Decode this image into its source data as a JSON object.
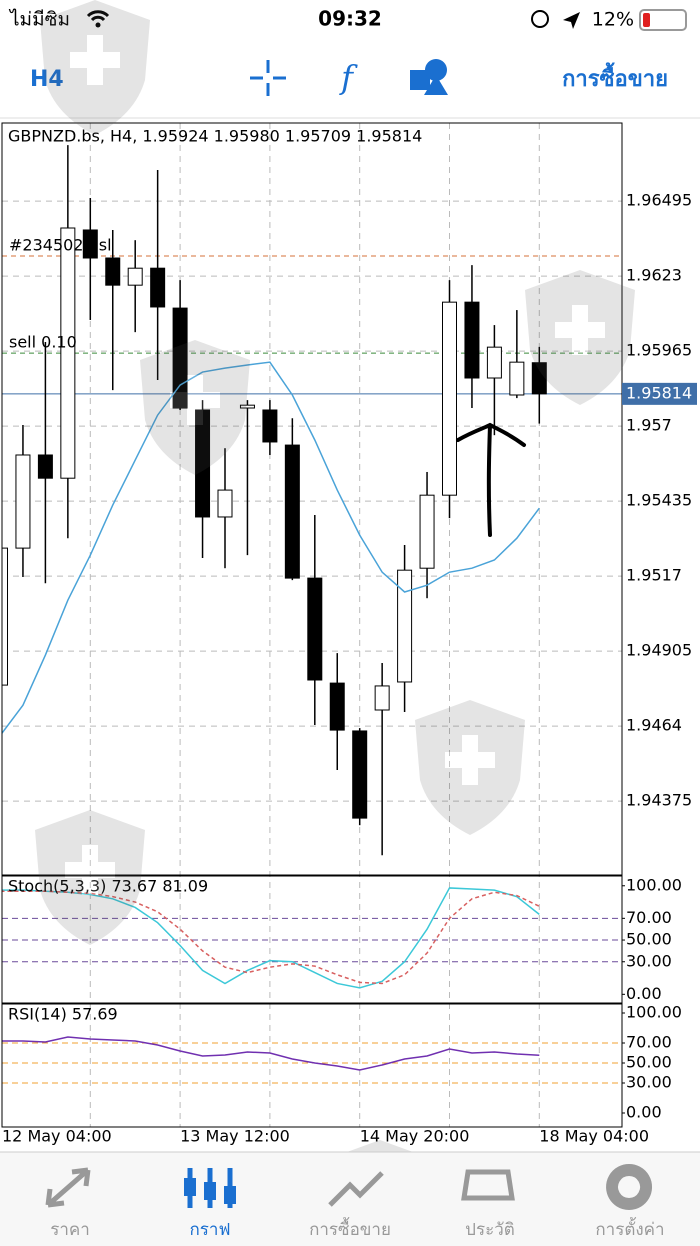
{
  "status_bar": {
    "carrier": "ไม่มีซิม",
    "time": "09:32",
    "battery": "12%"
  },
  "toolbar": {
    "timeframe": "H4",
    "trade": "การซื้อขาย"
  },
  "chart_data": [
    {
      "type": "candlestick",
      "title": "GBPNZD.bs, H4, 1.95924 1.95980 1.95709 1.95814",
      "open": [
        1.94785,
        1.95269,
        1.95598,
        1.95516,
        1.96393,
        1.96294,
        1.96198,
        1.96258,
        1.96117,
        1.95757,
        1.95379,
        1.95764,
        1.95757,
        1.95633,
        1.95163,
        1.94792,
        1.94623,
        1.94697,
        1.94796,
        1.95198,
        1.95456,
        1.96138,
        1.9587,
        1.9581,
        1.95924
      ],
      "high": [
        1.95269,
        1.95704,
        1.95997,
        1.96693,
        1.96506,
        1.96393,
        1.96357,
        1.96605,
        1.96216,
        1.95792,
        1.95622,
        1.95792,
        1.95792,
        1.95728,
        1.95386,
        1.94898,
        1.94633,
        1.94863,
        1.9528,
        1.95538,
        1.96216,
        1.96269,
        1.96057,
        1.9611,
        1.9598
      ],
      "low": [
        1.94785,
        1.95167,
        1.95145,
        1.95304,
        1.96075,
        1.95827,
        1.96032,
        1.95863,
        1.95757,
        1.95234,
        1.95198,
        1.95244,
        1.95598,
        1.95156,
        1.94644,
        1.94485,
        1.9429,
        1.94184,
        1.9469,
        1.95092,
        1.95375,
        1.95764,
        1.95668,
        1.95799,
        1.95709
      ],
      "close": [
        1.95269,
        1.95598,
        1.95516,
        1.964,
        1.96294,
        1.96198,
        1.96258,
        1.96121,
        1.95764,
        1.95379,
        1.95474,
        1.95774,
        1.95644,
        1.95163,
        1.94803,
        1.94626,
        1.94315,
        1.94782,
        1.95191,
        1.95456,
        1.96138,
        1.9587,
        1.95979,
        1.95926,
        1.95814
      ],
      "up_color": "#ffffff",
      "down_color": "#000000",
      "ma": {
        "color": "#4aa3d8",
        "values": [
          1.94608,
          1.94714,
          1.94891,
          1.95085,
          1.95244,
          1.95421,
          1.9558,
          1.95739,
          1.95845,
          1.95891,
          1.95905,
          1.95916,
          1.95926,
          1.9581,
          1.95651,
          1.95474,
          1.95315,
          1.95184,
          1.95114,
          1.95138,
          1.95184,
          1.95198,
          1.95227,
          1.95304,
          1.9541
        ]
      },
      "levels": [
        {
          "label": "#2345025 sl",
          "value": 1.96301,
          "color": "#d4703a"
        },
        {
          "label": "sell 0.10",
          "value": 1.95958,
          "color": "#3a8a3a"
        }
      ],
      "last_price": 1.95814,
      "last_price_color": "#3f6fa8",
      "ylim": [
        1.94114,
        1.96771
      ],
      "yticks": [
        1.96495,
        1.9623,
        1.95965,
        1.957,
        1.95435,
        1.9517,
        1.94905,
        1.9464,
        1.94375
      ],
      "grid": true
    },
    {
      "type": "line",
      "title": "Stoch(5,3,3) 73.67 81.09",
      "series": [
        {
          "color": "#3cc8d8",
          "values": [
            96,
            96,
            95,
            94,
            92,
            88,
            80,
            66,
            45,
            22,
            10,
            22,
            31,
            30,
            20,
            10,
            6,
            12,
            30,
            60,
            98,
            97,
            96,
            90,
            73.67
          ]
        },
        {
          "color": "#d86060",
          "dashed": true,
          "values": [
            95,
            95,
            95,
            94,
            93,
            90,
            85,
            76,
            60,
            40,
            25,
            20,
            25,
            28,
            26,
            18,
            11,
            10,
            18,
            38,
            70,
            88,
            94,
            91,
            81.09
          ]
        }
      ],
      "levels": [
        70,
        50,
        30
      ],
      "level_color": "#6a4a9a",
      "ylim": [
        -8,
        109
      ],
      "yticks": [
        {
          "value": 100,
          "label": "100.00"
        },
        {
          "value": 70,
          "label": "70.00"
        },
        {
          "value": 50,
          "label": "50.00"
        },
        {
          "value": 30,
          "label": "30.00"
        },
        {
          "value": 0,
          "label": "0.00"
        }
      ]
    },
    {
      "type": "line",
      "title": "RSI(14) 57.69",
      "series": [
        {
          "color": "#7030b0",
          "values": [
            72,
            72,
            71,
            76,
            74,
            73,
            72,
            68,
            62,
            57,
            58,
            61,
            60,
            54,
            50,
            47,
            43,
            48,
            54,
            57,
            64,
            60,
            61,
            59,
            57.69
          ]
        }
      ],
      "levels": [
        70,
        50,
        30
      ],
      "level_color": "#f0a030",
      "ylim": [
        -14,
        109
      ],
      "yticks": [
        {
          "value": 100,
          "label": "100.00"
        },
        {
          "value": 70,
          "label": "70.00"
        },
        {
          "value": 50,
          "label": "50.00"
        },
        {
          "value": 30,
          "label": "30.00"
        },
        {
          "value": 0,
          "label": "0.00"
        }
      ],
      "categories": [
        "12 May 04:00",
        null,
        null,
        null,
        null,
        null,
        null,
        null,
        "13 May 12:00",
        null,
        null,
        null,
        null,
        null,
        null,
        null,
        "14 May 20:00",
        null,
        null,
        null,
        null,
        null,
        null,
        null,
        "18 May 04:00"
      ]
    }
  ],
  "tab_bar": {
    "tabs": [
      "ราคา",
      "กราฟ",
      "การซื้อขาย",
      "ประวัติ",
      "การตั้งค่า"
    ],
    "active": 1
  }
}
